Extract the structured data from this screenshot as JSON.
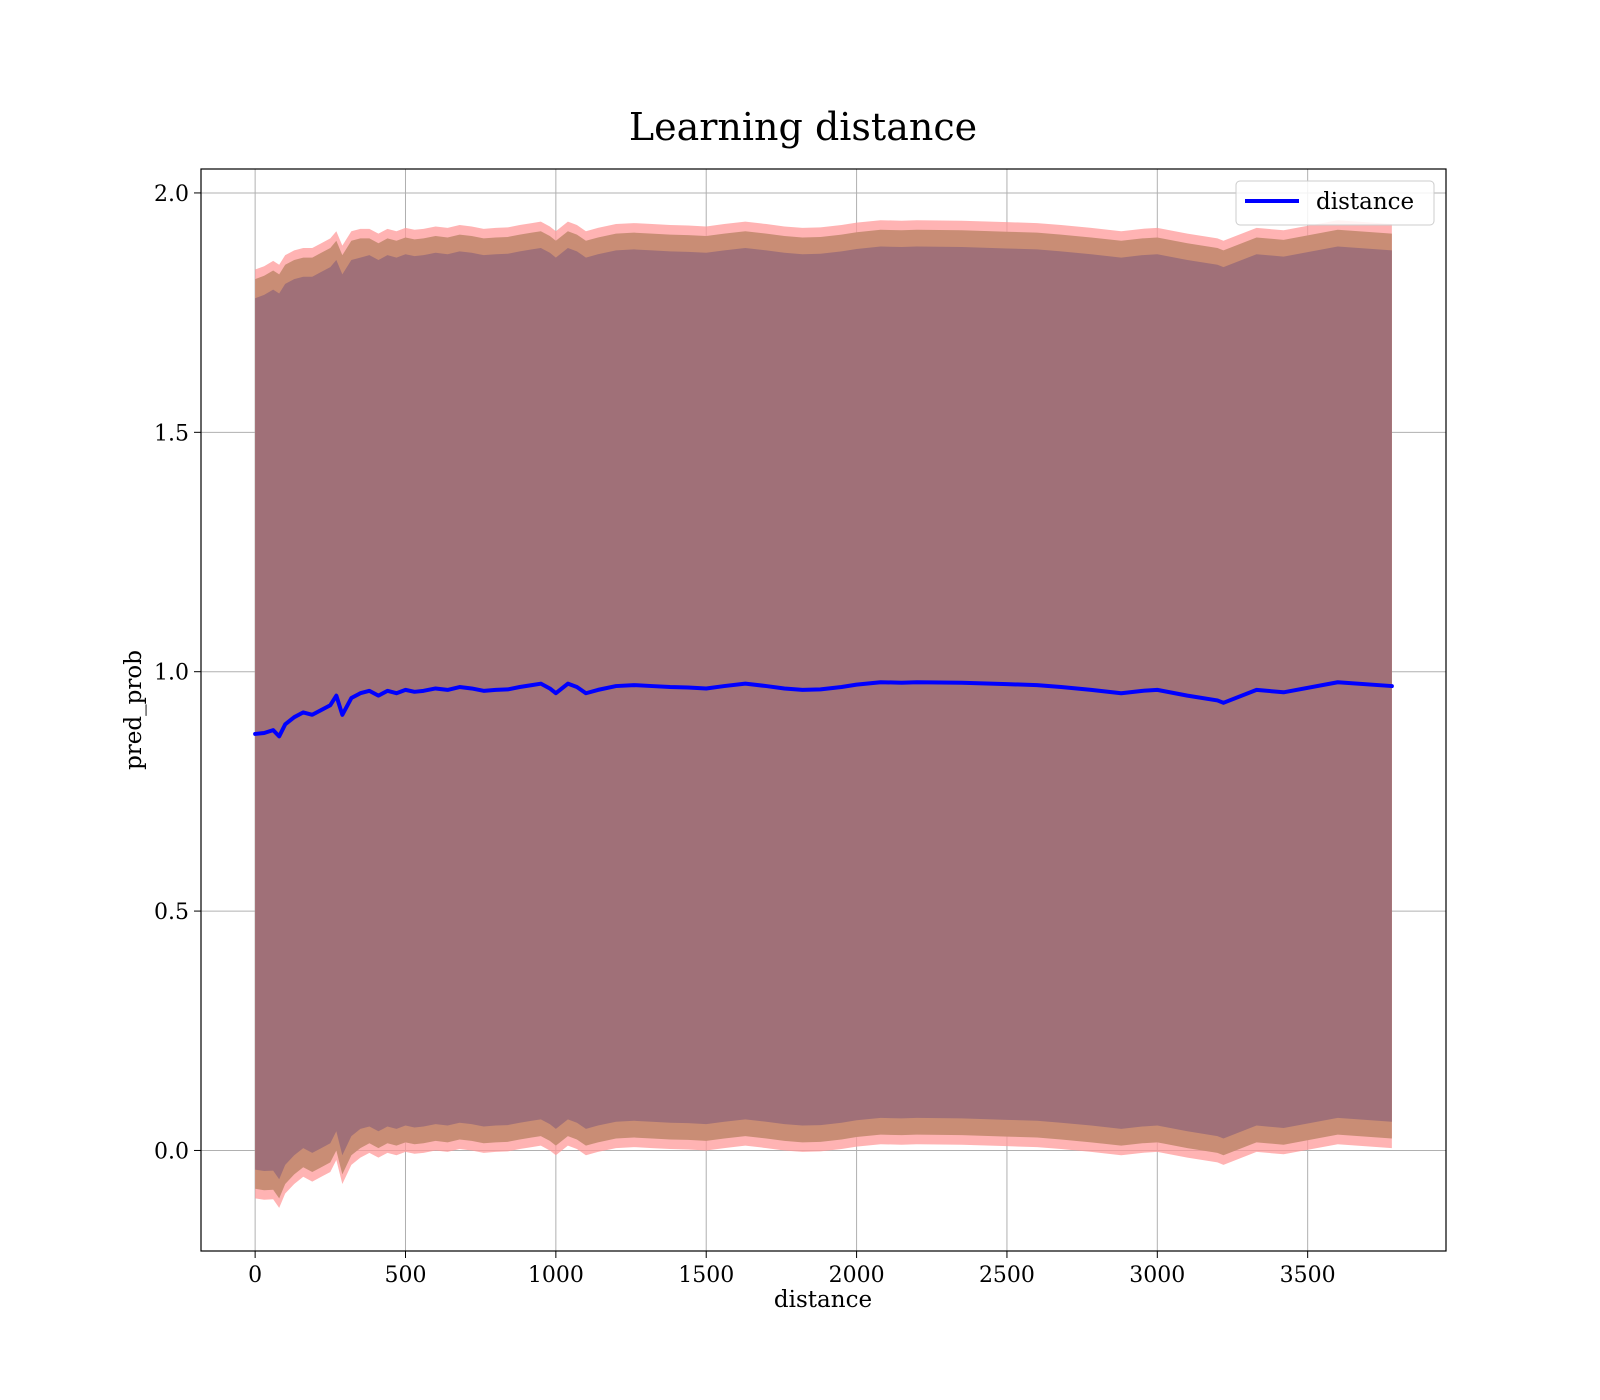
{
  "chart_data": {
    "type": "line",
    "title": "Learning distance",
    "xlabel": "distance",
    "ylabel": "pred_prob",
    "xlim": [
      -180,
      3960
    ],
    "ylim": [
      -0.21,
      2.05
    ],
    "xticks": [
      0,
      500,
      1000,
      1500,
      2000,
      2500,
      3000,
      3500
    ],
    "yticks": [
      0.0,
      0.5,
      1.0,
      1.5,
      2.0
    ],
    "ytick_labels": [
      "0.0",
      "0.5",
      "1.0",
      "1.5",
      "2.0"
    ],
    "grid": true,
    "legend": {
      "position": "top-right",
      "entries": [
        "distance"
      ]
    },
    "colors": {
      "line": "#0000ff",
      "band_outer": "#ff9999",
      "band_middle": "#c98d75",
      "band_inner": "#a07078",
      "grid": "#b0b0b0"
    },
    "series": [
      {
        "name": "distance",
        "x": [
          0,
          30,
          60,
          80,
          100,
          130,
          160,
          190,
          220,
          250,
          270,
          290,
          320,
          350,
          380,
          410,
          440,
          470,
          500,
          530,
          560,
          600,
          640,
          680,
          720,
          760,
          800,
          840,
          880,
          920,
          950,
          980,
          1000,
          1040,
          1070,
          1100,
          1140,
          1200,
          1260,
          1320,
          1380,
          1440,
          1500,
          1560,
          1630,
          1700,
          1760,
          1820,
          1880,
          1950,
          2000,
          2080,
          2150,
          2200,
          2350,
          2500,
          2600,
          2680,
          2780,
          2880,
          2950,
          3000,
          3100,
          3200,
          3220,
          3330,
          3420,
          3600,
          3780
        ],
        "values": [
          0.87,
          0.872,
          0.878,
          0.865,
          0.89,
          0.905,
          0.915,
          0.91,
          0.92,
          0.93,
          0.95,
          0.91,
          0.945,
          0.955,
          0.96,
          0.95,
          0.96,
          0.955,
          0.962,
          0.958,
          0.96,
          0.965,
          0.962,
          0.968,
          0.965,
          0.96,
          0.962,
          0.963,
          0.968,
          0.972,
          0.975,
          0.965,
          0.955,
          0.975,
          0.968,
          0.955,
          0.962,
          0.97,
          0.972,
          0.97,
          0.968,
          0.967,
          0.965,
          0.97,
          0.975,
          0.97,
          0.965,
          0.962,
          0.963,
          0.968,
          0.973,
          0.978,
          0.977,
          0.978,
          0.977,
          0.974,
          0.972,
          0.968,
          0.962,
          0.955,
          0.96,
          0.962,
          0.95,
          0.94,
          0.935,
          0.962,
          0.957,
          0.978,
          0.97
        ],
        "std_outer": [
          0.97,
          0.975,
          0.98,
          0.985,
          0.98,
          0.975,
          0.97,
          0.975,
          0.975,
          0.975,
          0.97,
          0.98,
          0.975,
          0.97,
          0.965,
          0.965,
          0.965,
          0.965,
          0.965,
          0.965,
          0.965,
          0.965,
          0.965,
          0.965,
          0.965,
          0.965,
          0.965,
          0.965,
          0.965,
          0.965,
          0.965,
          0.965,
          0.965,
          0.965,
          0.965,
          0.965,
          0.965,
          0.965,
          0.965,
          0.965,
          0.965,
          0.965,
          0.965,
          0.965,
          0.965,
          0.965,
          0.965,
          0.965,
          0.965,
          0.965,
          0.965,
          0.965,
          0.965,
          0.965,
          0.965,
          0.965,
          0.965,
          0.965,
          0.965,
          0.965,
          0.965,
          0.965,
          0.965,
          0.965,
          0.965,
          0.965,
          0.965,
          0.965,
          0.965
        ],
        "std_middle": [
          0.95,
          0.955,
          0.96,
          0.965,
          0.96,
          0.955,
          0.95,
          0.955,
          0.955,
          0.955,
          0.95,
          0.96,
          0.955,
          0.95,
          0.945,
          0.945,
          0.945,
          0.945,
          0.945,
          0.945,
          0.945,
          0.945,
          0.945,
          0.945,
          0.945,
          0.945,
          0.945,
          0.945,
          0.945,
          0.945,
          0.945,
          0.945,
          0.945,
          0.945,
          0.945,
          0.945,
          0.945,
          0.945,
          0.945,
          0.945,
          0.945,
          0.945,
          0.945,
          0.945,
          0.945,
          0.945,
          0.945,
          0.945,
          0.945,
          0.945,
          0.945,
          0.945,
          0.945,
          0.945,
          0.945,
          0.945,
          0.945,
          0.945,
          0.945,
          0.945,
          0.945,
          0.945,
          0.945,
          0.945,
          0.945,
          0.945,
          0.945,
          0.945,
          0.945
        ],
        "std_inner": [
          0.91,
          0.915,
          0.92,
          0.925,
          0.92,
          0.915,
          0.91,
          0.915,
          0.915,
          0.915,
          0.91,
          0.92,
          0.915,
          0.91,
          0.91,
          0.91,
          0.91,
          0.91,
          0.91,
          0.91,
          0.91,
          0.91,
          0.91,
          0.91,
          0.91,
          0.91,
          0.91,
          0.91,
          0.91,
          0.91,
          0.91,
          0.91,
          0.91,
          0.91,
          0.91,
          0.91,
          0.91,
          0.91,
          0.91,
          0.91,
          0.91,
          0.91,
          0.91,
          0.91,
          0.91,
          0.91,
          0.91,
          0.91,
          0.91,
          0.91,
          0.91,
          0.91,
          0.91,
          0.91,
          0.91,
          0.91,
          0.91,
          0.91,
          0.91,
          0.91,
          0.91,
          0.91,
          0.91,
          0.91,
          0.91,
          0.91,
          0.91,
          0.91,
          0.91
        ]
      }
    ]
  }
}
